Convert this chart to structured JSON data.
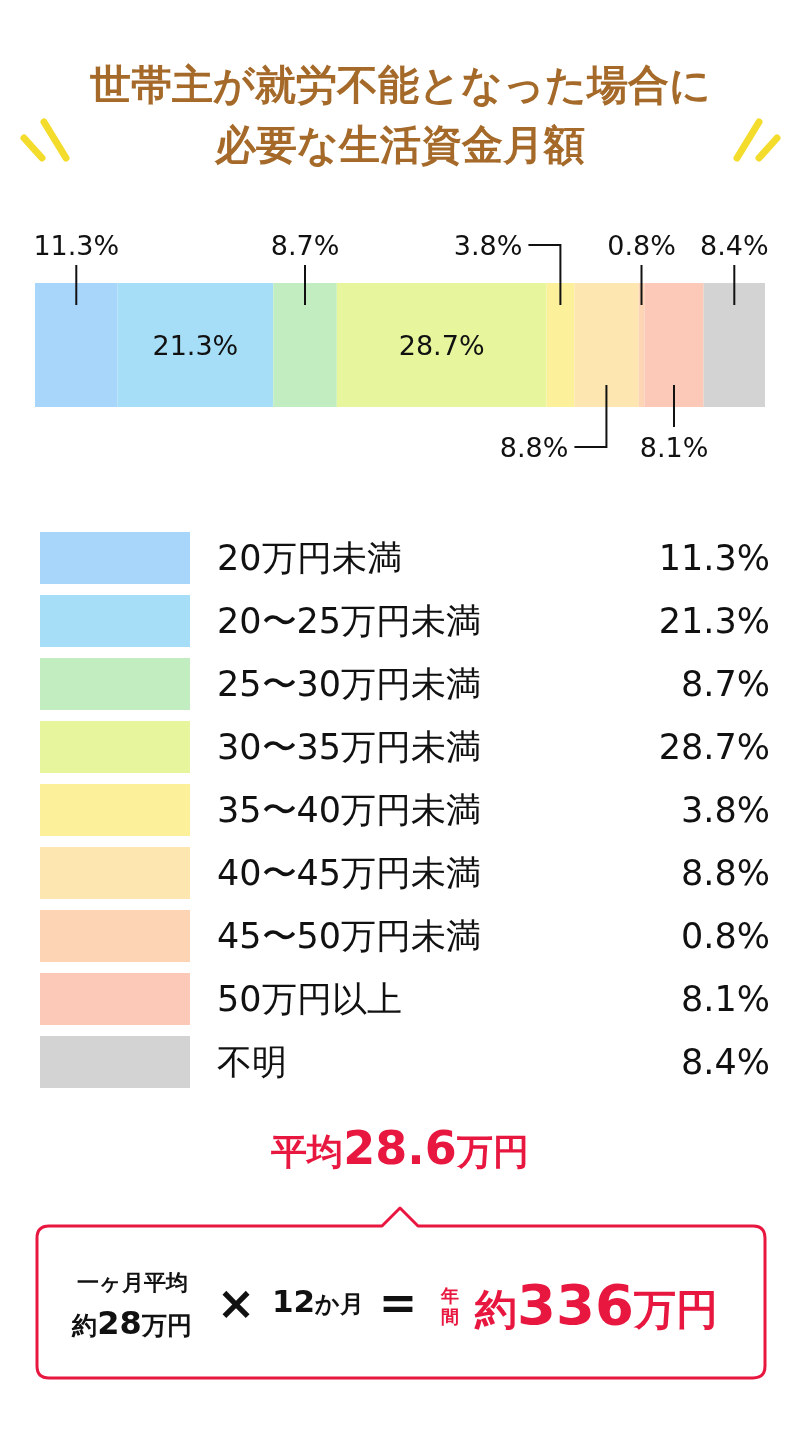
{
  "chart_data": {
    "type": "bar",
    "orientation": "horizontal",
    "stacked": true,
    "title": "世帯主が就労不能となった場合に必要な生活資金月額",
    "categories": [
      null
    ],
    "tick_labels": false,
    "legend": "bottom",
    "series": [
      {
        "name": "20万円未満",
        "color": "#a8d6fb",
        "values": [
          11.3
        ],
        "value_labels": [
          "11.3%"
        ]
      },
      {
        "name": "20〜25万円未満",
        "color": "#a6def8",
        "values": [
          21.3
        ],
        "value_labels": [
          "21.3%"
        ]
      },
      {
        "name": "25〜30万円未満",
        "color": "#c1edc1",
        "values": [
          8.7
        ],
        "value_labels": [
          "8.7%"
        ]
      },
      {
        "name": "30〜35万円未満",
        "color": "#e7f59d",
        "values": [
          28.7
        ],
        "value_labels": [
          "28.7%"
        ]
      },
      {
        "name": "35〜40万円未満",
        "color": "#fdf09b",
        "values": [
          3.8
        ],
        "value_labels": [
          "3.8%"
        ]
      },
      {
        "name": "40〜45万円未満",
        "color": "#fde6b0",
        "values": [
          8.8
        ],
        "value_labels": [
          "8.8%"
        ]
      },
      {
        "name": "45〜50万円未満",
        "color": "#fdd4b4",
        "values": [
          0.8
        ],
        "value_labels": [
          "0.8%"
        ]
      },
      {
        "name": "50万円以上",
        "color": "#fcc8b7",
        "values": [
          8.1
        ],
        "value_labels": [
          "8.1%"
        ]
      },
      {
        "name": "不明",
        "color": "#d3d3d3",
        "values": [
          8.4
        ],
        "value_labels": [
          "8.4%"
        ]
      }
    ],
    "annotations": [
      "平均28.6万円",
      "一ヶ月平均",
      "約28万円",
      "×",
      "12か月",
      "=",
      "年間",
      "約336万円"
    ]
  }
}
